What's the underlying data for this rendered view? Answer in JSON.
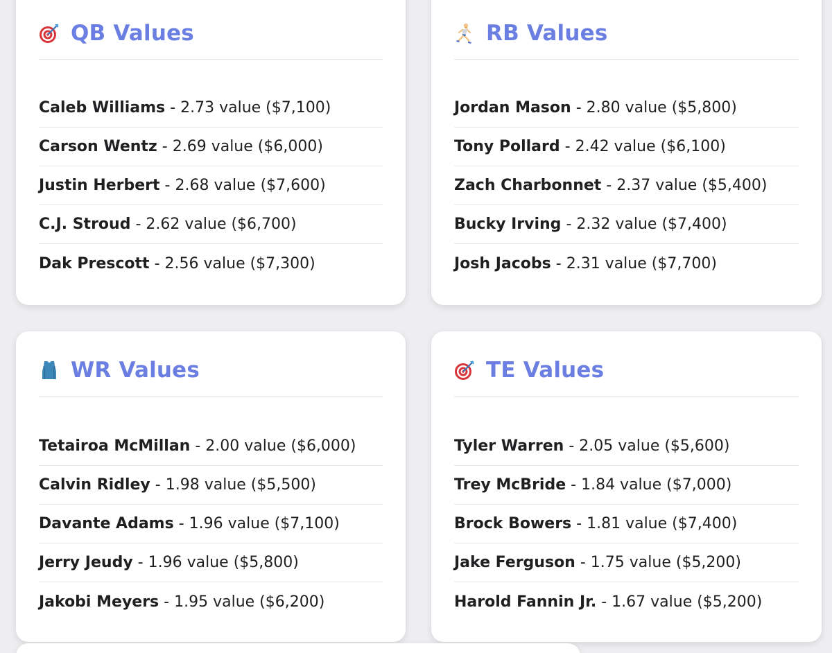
{
  "cards": [
    {
      "id": "qb",
      "icon": "dart-target-icon",
      "title": "QB Values",
      "players": [
        {
          "name": "Caleb Williams",
          "detail": "2.73 value ($7,100)"
        },
        {
          "name": "Carson Wentz",
          "detail": "2.69 value ($6,000)"
        },
        {
          "name": "Justin Herbert",
          "detail": "2.68 value ($7,600)"
        },
        {
          "name": "C.J. Stroud",
          "detail": "2.62 value ($6,700)"
        },
        {
          "name": "Dak Prescott",
          "detail": "2.56 value ($7,300)"
        }
      ]
    },
    {
      "id": "rb",
      "icon": "runner-icon",
      "title": "RB Values",
      "players": [
        {
          "name": "Jordan Mason",
          "detail": "2.80 value ($5,800)"
        },
        {
          "name": "Tony Pollard",
          "detail": "2.42 value ($6,100)"
        },
        {
          "name": "Zach Charbonnet",
          "detail": "2.37 value ($5,400)"
        },
        {
          "name": "Bucky Irving",
          "detail": "2.32 value ($7,400)"
        },
        {
          "name": "Josh Jacobs",
          "detail": "2.31 value ($7,700)"
        }
      ]
    },
    {
      "id": "wr",
      "icon": "jersey-icon",
      "title": "WR Values",
      "players": [
        {
          "name": "Tetairoa McMillan",
          "detail": "2.00 value ($6,000)"
        },
        {
          "name": "Calvin Ridley",
          "detail": "1.98 value ($5,500)"
        },
        {
          "name": "Davante Adams",
          "detail": "1.96 value ($7,100)"
        },
        {
          "name": "Jerry Jeudy",
          "detail": "1.96 value ($5,800)"
        },
        {
          "name": "Jakobi Meyers",
          "detail": "1.95 value ($6,200)"
        }
      ]
    },
    {
      "id": "te",
      "icon": "dart-target-icon",
      "title": "TE Values",
      "players": [
        {
          "name": "Tyler Warren",
          "detail": "2.05 value ($5,600)"
        },
        {
          "name": "Trey McBride",
          "detail": "1.84 value ($7,000)"
        },
        {
          "name": "Brock Bowers",
          "detail": "1.81 value ($7,400)"
        },
        {
          "name": "Jake Ferguson",
          "detail": "1.75 value ($5,200)"
        },
        {
          "name": "Harold Fannin Jr.",
          "detail": "1.67 value ($5,200)"
        }
      ]
    }
  ],
  "separator": "-",
  "colors": {
    "title": "#6b7ee2",
    "background": "#eeeef1",
    "card": "#ffffff"
  }
}
